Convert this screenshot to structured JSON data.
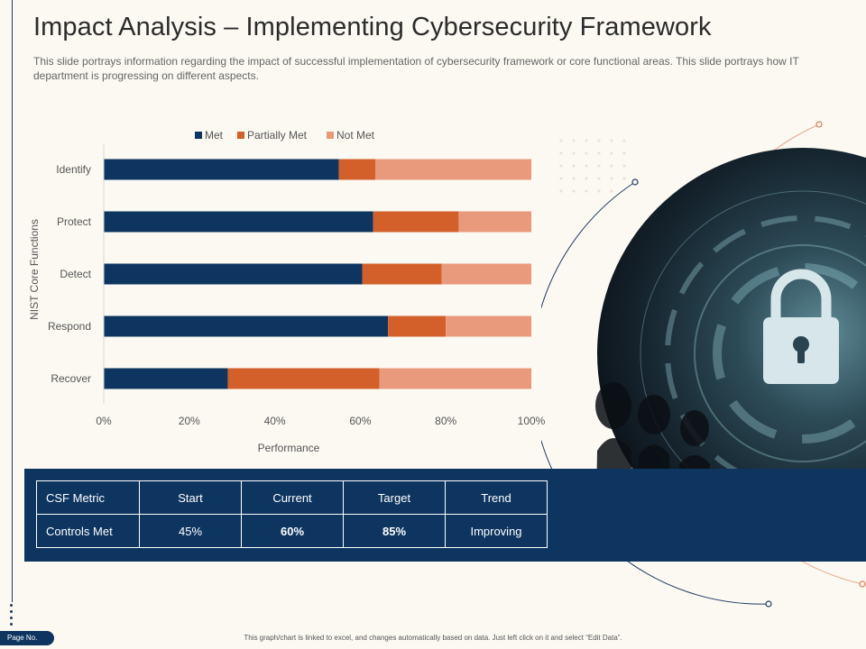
{
  "slide": {
    "title": "Impact Analysis – Implementing Cybersecurity Framework",
    "subtitle": "This slide portrays information regarding the impact of successful  implementation of cybersecurity framework or core functional  areas. This slide portrays how IT department is progressing  on different  aspects.",
    "page_label": "Page No.",
    "footer_note": "This graph/chart is linked to excel, and changes automatically based on data. Just left click on it and select “Edit Data”."
  },
  "colors": {
    "met": "#0e3560",
    "partially_met": "#d35f2a",
    "not_met": "#e99a7c",
    "band": "#0e3560"
  },
  "chart_data": {
    "type": "bar",
    "orientation": "horizontal",
    "stacked": true,
    "categories": [
      "Identify",
      "Protect",
      "Detect",
      "Respond",
      "Recover"
    ],
    "series": [
      {
        "name": "Met",
        "values": [
          55,
          63,
          60.5,
          66.5,
          29
        ]
      },
      {
        "name": "Partially Met",
        "values": [
          8.5,
          20,
          18.5,
          13.5,
          35.5
        ]
      },
      {
        "name": "Not Met",
        "values": [
          36.5,
          17,
          21,
          20,
          35.5
        ]
      }
    ],
    "xticks": [
      "0%",
      "20%",
      "40%",
      "60%",
      "80%",
      "100%"
    ],
    "xlim": [
      0,
      100
    ],
    "title": "",
    "xlabel": "Performance",
    "ylabel": "NIST Core Functions",
    "legend": "top-center",
    "grid": false
  },
  "table": {
    "headers": [
      "CSF Metric",
      "Start",
      "Current",
      "Target",
      "Trend"
    ],
    "row": [
      "Controls Met",
      "45%",
      "60%",
      "85%",
      "Improving"
    ]
  }
}
